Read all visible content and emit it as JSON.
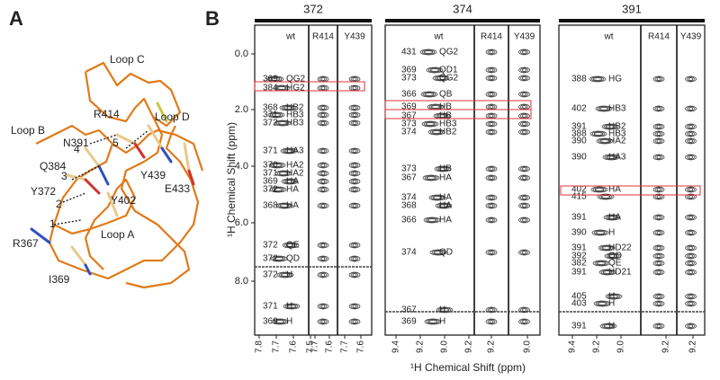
{
  "panel_a": {
    "label": "A",
    "labels": [
      "Loop C",
      "Loop B",
      "Loop D",
      "Loop A",
      "N391",
      "R414",
      "Q384",
      "E433",
      "Y372",
      "Y439",
      "Y402",
      "R367",
      "I369",
      "4",
      "5",
      "3",
      "2",
      "1"
    ]
  },
  "panel_b": {
    "label": "B",
    "y_axis_label": "¹H Chemical Shift (ppm)",
    "x_axis_label": "¹H Chemical Shift (ppm)",
    "y_ticks": [
      "0.0",
      "2.0",
      "4.0",
      "6.0",
      "8.0"
    ],
    "groups": [
      {
        "title": "372",
        "columns": [
          "wt",
          "R414",
          "Y439"
        ],
        "x_ticks": [
          "7.8",
          "7.7",
          "7.6",
          "7.5",
          "7.7",
          "7.6",
          "7.7",
          "7.6"
        ],
        "peaks": [
          {
            "residue": "369",
            "atom": "QG2"
          },
          {
            "residue": "384",
            "atom": "HG2"
          },
          {
            "residue": "368",
            "atom": "HB2"
          },
          {
            "residue": "371",
            "atom": "HB3"
          },
          {
            "residue": "372",
            "atom": "HB3"
          },
          {
            "residue": "371",
            "atom": "HA3"
          },
          {
            "residue": "370",
            "atom": "HA2"
          },
          {
            "residue": "371",
            "atom": "HA2"
          },
          {
            "residue": "369",
            "atom": "HA"
          },
          {
            "residue": "372",
            "atom": "HA"
          },
          {
            "residue": "368",
            "atom": "HA"
          },
          {
            "residue": "372",
            "atom": "QE"
          },
          {
            "residue": "372",
            "atom": "QD"
          },
          {
            "residue": "372",
            "atom": "H"
          },
          {
            "residue": "371",
            "atom": "H"
          },
          {
            "residue": "369",
            "atom": "H"
          }
        ]
      },
      {
        "title": "374",
        "columns": [
          "wt",
          "R414",
          "Y439"
        ],
        "x_ticks": [
          "9.4",
          "9.2",
          "9.0",
          "9.2",
          "9.2",
          "9.0"
        ],
        "peaks": [
          {
            "residue": "431",
            "atom": "QG2"
          },
          {
            "residue": "369",
            "atom": "QD1"
          },
          {
            "residue": "373",
            "atom": "QG2"
          },
          {
            "residue": "366",
            "atom": "QB"
          },
          {
            "residue": "369",
            "atom": "HB"
          },
          {
            "residue": "367",
            "atom": "HB"
          },
          {
            "residue": "373",
            "atom": "HB3"
          },
          {
            "residue": "374",
            "atom": "HB2"
          },
          {
            "residue": "373",
            "atom": "HB"
          },
          {
            "residue": "367",
            "atom": "HA"
          },
          {
            "residue": "374",
            "atom": "HA"
          },
          {
            "residue": "368",
            "atom": "HA"
          },
          {
            "residue": "366",
            "atom": "HA"
          },
          {
            "residue": "374",
            "atom": "QD"
          },
          {
            "residue": "367",
            "atom": "H"
          },
          {
            "residue": "369",
            "atom": "H"
          }
        ]
      },
      {
        "title": "391",
        "columns": [
          "wt",
          "R414",
          "Y439"
        ],
        "x_ticks": [
          "9.4",
          "9.2",
          "9.0",
          "9.2",
          "9.2"
        ],
        "peaks": [
          {
            "residue": "388",
            "atom": "HG"
          },
          {
            "residue": "402",
            "atom": "HB3"
          },
          {
            "residue": "391",
            "atom": "HB2"
          },
          {
            "residue": "388",
            "atom": "HB3"
          },
          {
            "residue": "390",
            "atom": "HA2"
          },
          {
            "residue": "390",
            "atom": "HA3"
          },
          {
            "residue": "402",
            "atom": "HA"
          },
          {
            "residue": "415"
          },
          {
            "residue": "391",
            "atom": "HA"
          },
          {
            "residue": "390",
            "atom": "H"
          },
          {
            "residue": "391",
            "atom": "HD22"
          },
          {
            "residue": "392",
            "atom": "QD"
          },
          {
            "residue": "382",
            "atom": "QE"
          },
          {
            "residue": "391",
            "atom": "HD21"
          },
          {
            "residue": "405",
            "atom": "H"
          },
          {
            "residue": "403",
            "atom": "H"
          },
          {
            "residue": "391",
            "atom": "H"
          }
        ]
      }
    ]
  }
}
